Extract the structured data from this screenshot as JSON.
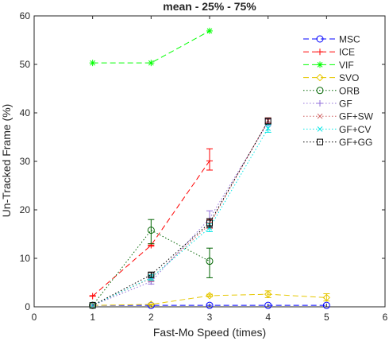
{
  "chart_data": {
    "type": "line",
    "title": "mean - 25% - 75%",
    "xlabel": "Fast-Mo Speed (times)",
    "ylabel": "Un-Tracked Frame (%)",
    "xlim": [
      0,
      6
    ],
    "ylim": [
      0,
      60
    ],
    "xticks": [
      0,
      1,
      2,
      3,
      4,
      5,
      6
    ],
    "yticks": [
      0,
      10,
      20,
      30,
      40,
      50,
      60
    ],
    "grid": false,
    "legend_position": "top-right",
    "series": [
      {
        "name": "MSC",
        "color": "#0000ff",
        "dash": "dashed",
        "marker": "circle",
        "x": [
          1,
          2,
          3,
          4,
          5
        ],
        "y": [
          0.3,
          0.3,
          0.3,
          0.3,
          0.3
        ],
        "err_low": [
          0.3,
          0.3,
          0.3,
          0.3,
          0.3
        ],
        "err_high": [
          0.3,
          0.3,
          0.3,
          0.3,
          0.3
        ]
      },
      {
        "name": "ICE",
        "color": "#ff0000",
        "dash": "dashed",
        "marker": "plus",
        "x": [
          1,
          2,
          3
        ],
        "y": [
          2.2,
          12.7,
          30.1
        ],
        "err_low": [
          2.2,
          12.5,
          28.2
        ],
        "err_high": [
          2.3,
          13.0,
          32.6
        ]
      },
      {
        "name": "VIF",
        "color": "#00ff00",
        "dash": "dashed",
        "marker": "star",
        "x": [
          1,
          2,
          3
        ],
        "y": [
          50.3,
          50.3,
          56.9
        ],
        "err_low": [
          50.3,
          50.3,
          56.9
        ],
        "err_high": [
          50.3,
          50.3,
          56.9
        ]
      },
      {
        "name": "SVO",
        "color": "#e6c700",
        "dash": "dashed",
        "marker": "diamond",
        "x": [
          1,
          2,
          3,
          4,
          5
        ],
        "y": [
          0.3,
          0.5,
          2.3,
          2.6,
          1.9
        ],
        "err_low": [
          0.3,
          0.4,
          2.1,
          1.9,
          1.2
        ],
        "err_high": [
          0.3,
          0.6,
          2.6,
          3.3,
          2.7
        ]
      },
      {
        "name": "ORB",
        "color": "#006400",
        "dash": "dotted",
        "marker": "circle",
        "x": [
          1,
          2,
          3
        ],
        "y": [
          0.3,
          15.8,
          9.4
        ],
        "err_low": [
          0.3,
          13.0,
          6.0
        ],
        "err_high": [
          0.3,
          18.0,
          12.1
        ]
      },
      {
        "name": "GF",
        "color": "#9370db",
        "dash": "dotted",
        "marker": "plus",
        "x": [
          1,
          2,
          3,
          4
        ],
        "y": [
          0.3,
          5.2,
          18.2,
          38.0
        ],
        "err_low": [
          0.3,
          4.7,
          16.5,
          37.4
        ],
        "err_high": [
          0.3,
          5.8,
          19.8,
          38.7
        ]
      },
      {
        "name": "GF+SW",
        "color": "#cd5c5c",
        "dash": "dotted",
        "marker": "x",
        "x": [
          1,
          2,
          3,
          4
        ],
        "y": [
          0.3,
          5.9,
          17.0,
          38.4
        ],
        "err_low": [
          0.3,
          5.3,
          16.2,
          37.8
        ],
        "err_high": [
          0.3,
          6.5,
          18.0,
          39.0
        ]
      },
      {
        "name": "GF+CV",
        "color": "#00e5e5",
        "dash": "dotted",
        "marker": "x",
        "x": [
          1,
          2,
          3,
          4
        ],
        "y": [
          0.3,
          6.0,
          16.3,
          36.8
        ],
        "err_low": [
          0.3,
          5.5,
          15.5,
          36.0
        ],
        "err_high": [
          0.3,
          6.6,
          17.1,
          37.6
        ]
      },
      {
        "name": "GF+GG",
        "color": "#000000",
        "dash": "dotted",
        "marker": "square",
        "x": [
          1,
          2,
          3,
          4
        ],
        "y": [
          0.3,
          6.6,
          17.3,
          38.3
        ],
        "err_low": [
          0.3,
          6.1,
          16.4,
          37.7
        ],
        "err_high": [
          0.3,
          7.1,
          18.2,
          38.9
        ]
      }
    ]
  }
}
